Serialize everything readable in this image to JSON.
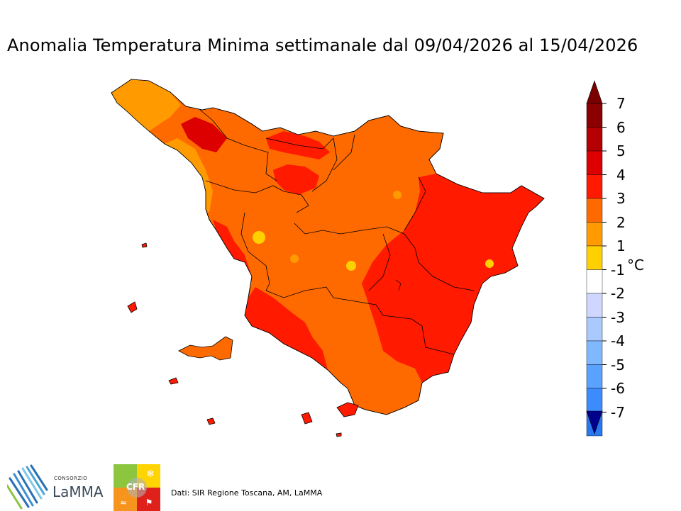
{
  "title": "Anomalia Temperatura Minima settimanale dal 09/04/2026 al 15/04/2026",
  "colorbar": {
    "unit": "°C",
    "ticks": [
      "7",
      "6",
      "5",
      "4",
      "3",
      "2",
      "1",
      "-1",
      "-2",
      "-3",
      "-4",
      "-5",
      "-6",
      "-7"
    ],
    "colors": [
      "#8b0000",
      "#b40000",
      "#dc0000",
      "#ff1a00",
      "#ff6a00",
      "#ff9a00",
      "#ffd000",
      "#ffffff",
      "#cfd6ff",
      "#a9c9ff",
      "#80b8ff",
      "#5aa2ff",
      "#3c8cff",
      "#2a78f0"
    ],
    "over_color": "#7a0000",
    "under_color": "#00008b"
  },
  "logos": {
    "lamma_small": "CONSORZIO",
    "lamma": "LaMMA",
    "cfr": "CFR"
  },
  "credits": "Dati: SIR Regione Toscana, AM, LaMMA"
}
